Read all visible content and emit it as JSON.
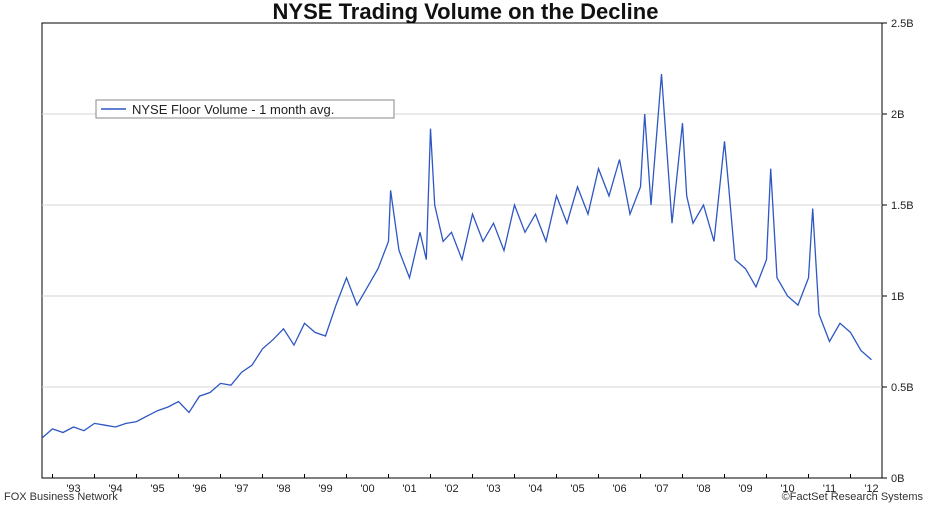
{
  "chart_data": {
    "type": "line",
    "title": "NYSE Trading Volume on the Decline",
    "source_left": "FOX Business Network",
    "source_right": "©FactSet Research Systems",
    "legend_position": "top-left",
    "grid": true,
    "series_color": "#2e57c2",
    "x_ticks": [
      "'93",
      "'94",
      "'95",
      "'96",
      "'97",
      "'98",
      "'99",
      "'00",
      "'01",
      "'02",
      "'03",
      "'04",
      "'05",
      "'06",
      "'07",
      "'08",
      "'09",
      "'10",
      "'11",
      "'12"
    ],
    "y_ticks": [
      "0B",
      "0.5B",
      "1B",
      "1.5B",
      "2B",
      "2.5B"
    ],
    "ylim": [
      0,
      2.5
    ],
    "xlim": [
      1992.75,
      2012.75
    ],
    "series": [
      {
        "name": "NYSE Floor Volume - 1 month avg.",
        "x": [
          1992.75,
          1993.0,
          1993.25,
          1993.5,
          1993.75,
          1994.0,
          1994.25,
          1994.5,
          1994.75,
          1995.0,
          1995.25,
          1995.5,
          1995.75,
          1996.0,
          1996.25,
          1996.5,
          1996.75,
          1997.0,
          1997.25,
          1997.5,
          1997.75,
          1998.0,
          1998.25,
          1998.5,
          1998.75,
          1999.0,
          1999.25,
          1999.5,
          1999.75,
          2000.0,
          2000.25,
          2000.5,
          2000.75,
          2001.0,
          2001.05,
          2001.25,
          2001.5,
          2001.75,
          2001.9,
          2002.0,
          2002.1,
          2002.3,
          2002.5,
          2002.75,
          2003.0,
          2003.25,
          2003.5,
          2003.75,
          2004.0,
          2004.25,
          2004.5,
          2004.75,
          2005.0,
          2005.25,
          2005.5,
          2005.75,
          2006.0,
          2006.25,
          2006.5,
          2006.75,
          2007.0,
          2007.1,
          2007.25,
          2007.5,
          2007.75,
          2008.0,
          2008.1,
          2008.25,
          2008.5,
          2008.75,
          2009.0,
          2009.1,
          2009.25,
          2009.5,
          2009.75,
          2010.0,
          2010.1,
          2010.25,
          2010.5,
          2010.75,
          2011.0,
          2011.1,
          2011.25,
          2011.5,
          2011.75,
          2012.0,
          2012.25,
          2012.5
        ],
        "values": [
          0.22,
          0.27,
          0.25,
          0.28,
          0.26,
          0.3,
          0.29,
          0.28,
          0.3,
          0.31,
          0.34,
          0.37,
          0.39,
          0.42,
          0.36,
          0.45,
          0.47,
          0.52,
          0.51,
          0.58,
          0.62,
          0.71,
          0.76,
          0.82,
          0.73,
          0.85,
          0.8,
          0.78,
          0.95,
          1.1,
          0.95,
          1.05,
          1.15,
          1.3,
          1.58,
          1.25,
          1.1,
          1.35,
          1.2,
          1.92,
          1.5,
          1.3,
          1.35,
          1.2,
          1.45,
          1.3,
          1.4,
          1.25,
          1.5,
          1.35,
          1.45,
          1.3,
          1.55,
          1.4,
          1.6,
          1.45,
          1.7,
          1.55,
          1.75,
          1.45,
          1.6,
          2.0,
          1.5,
          2.22,
          1.4,
          1.95,
          1.55,
          1.4,
          1.5,
          1.3,
          1.85,
          1.6,
          1.2,
          1.15,
          1.05,
          1.2,
          1.7,
          1.1,
          1.0,
          0.95,
          1.1,
          1.48,
          0.9,
          0.75,
          0.85,
          0.8,
          0.7,
          0.65
        ]
      }
    ]
  }
}
